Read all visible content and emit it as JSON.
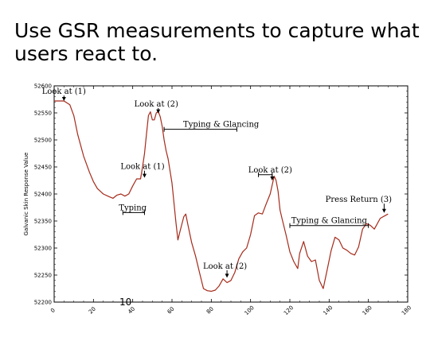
{
  "slide": {
    "title": "Use GSR measurements to capture what users react to.",
    "page_number": "10"
  },
  "chart_data": {
    "type": "line",
    "title": "",
    "xlabel": "",
    "ylabel": "Galvanic Skin Response Value",
    "xlim": [
      0,
      180
    ],
    "ylim": [
      52200,
      52600
    ],
    "xticks": [
      0,
      20,
      40,
      60,
      80,
      100,
      120,
      140,
      160,
      180
    ],
    "yticks": [
      52200,
      52250,
      52300,
      52350,
      52400,
      52450,
      52500,
      52550,
      52600
    ],
    "grid": false,
    "line_color": "#a52a1a",
    "series": [
      {
        "name": "",
        "x": [
          0,
          5,
          8,
          10,
          12,
          15,
          18,
          20,
          22,
          25,
          28,
          30,
          32,
          34,
          36,
          38,
          40,
          42,
          44,
          45,
          46,
          47,
          48,
          49,
          50,
          51,
          52,
          53,
          54,
          55,
          56,
          57,
          58,
          60,
          62,
          63,
          64,
          66,
          67,
          68,
          70,
          72,
          74,
          76,
          78,
          80,
          82,
          84,
          86,
          88,
          90,
          92,
          94,
          96,
          98,
          100,
          102,
          104,
          106,
          108,
          110,
          112,
          113,
          114,
          115,
          116,
          118,
          120,
          122,
          124,
          125,
          127,
          129,
          131,
          133,
          135,
          137,
          139,
          141,
          143,
          145,
          147,
          149,
          151,
          153,
          155,
          157,
          159,
          161,
          163,
          166,
          170
        ],
        "y": [
          52572,
          52572,
          52565,
          52545,
          52510,
          52470,
          52440,
          52423,
          52410,
          52400,
          52395,
          52392,
          52398,
          52400,
          52396,
          52400,
          52415,
          52428,
          52428,
          52450,
          52475,
          52510,
          52545,
          52552,
          52537,
          52537,
          52550,
          52553,
          52543,
          52525,
          52500,
          52480,
          52465,
          52420,
          52348,
          52315,
          52330,
          52358,
          52363,
          52345,
          52310,
          52285,
          52255,
          52225,
          52221,
          52220,
          52222,
          52230,
          52243,
          52236,
          52240,
          52255,
          52280,
          52293,
          52300,
          52325,
          52360,
          52365,
          52363,
          52382,
          52400,
          52433,
          52425,
          52405,
          52370,
          52355,
          52325,
          52293,
          52275,
          52262,
          52290,
          52312,
          52285,
          52275,
          52278,
          52240,
          52225,
          52260,
          52295,
          52320,
          52315,
          52300,
          52296,
          52290,
          52287,
          52302,
          52335,
          52345,
          52342,
          52335,
          52355,
          52363
        ]
      }
    ],
    "annotations": [
      {
        "text": "Look at (1)",
        "x": 5,
        "y": 52585,
        "arrow_to": [
          5,
          52572
        ]
      },
      {
        "text": "Look at (2)",
        "x": 52,
        "y": 52562,
        "arrow_to": [
          53,
          52549
        ]
      },
      {
        "text": "Typing & Glancing",
        "x": 85,
        "y": 52524,
        "range": [
          56,
          93
        ]
      },
      {
        "text": "Look at (1)",
        "x": 45,
        "y": 52446,
        "arrow_to": [
          46,
          52430
        ]
      },
      {
        "text": "Typing",
        "x": 40,
        "y": 52370,
        "range": [
          35,
          46
        ]
      },
      {
        "text": "Look at (2)",
        "x": 110,
        "y": 52440,
        "range": [
          104,
          111
        ],
        "arrow_to": [
          111,
          52425
        ]
      },
      {
        "text": "Typing & Glancing",
        "x": 140,
        "y": 52346,
        "range": [
          120,
          160
        ]
      },
      {
        "text": "Look at (2)",
        "x": 87,
        "y": 52262,
        "arrow_to": [
          88,
          52245
        ]
      },
      {
        "text": "Press Return (3)",
        "x": 155,
        "y": 52385,
        "arrow_to": [
          168,
          52365
        ]
      }
    ]
  }
}
